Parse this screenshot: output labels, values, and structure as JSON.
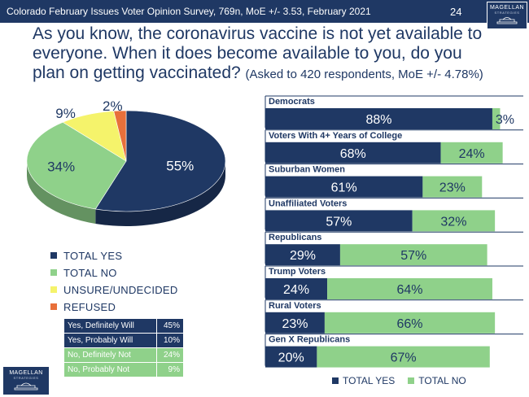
{
  "header": {
    "title": "Colorado February Issues Voter Opinion Survey, 769n, MoE +/- 3.53, February 2021",
    "page_number": "24",
    "logo_text": "MAGELLAN",
    "logo_subtext": "STRATEGIES",
    "bar_color": "#1f3864"
  },
  "question": {
    "main": "As you know, the coronavirus vaccine is not yet available to everyone. When it does become available to you, do you plan on getting vaccinated?",
    "note": "(Asked to 420 respondents, MoE +/- 4.78%)"
  },
  "chart_data": [
    {
      "type": "pie",
      "categories": [
        "TOTAL YES",
        "TOTAL NO",
        "UNSURE/UNDECIDED",
        "REFUSED"
      ],
      "values": [
        55,
        34,
        9,
        2
      ],
      "labels": [
        "55%",
        "34%",
        "9%",
        "2%"
      ],
      "colors": [
        "#1f3864",
        "#8fd18a",
        "#f5f36b",
        "#e8703a"
      ],
      "legend_position": "bottom"
    },
    {
      "type": "bar",
      "orientation": "horizontal",
      "stacked": true,
      "categories": [
        "Democrats",
        "Voters With 4+ Years of College",
        "Suburban Women",
        "Unaffiliated Voters",
        "Republicans",
        "Trump Voters",
        "Rural Voters",
        "Gen X Republicans"
      ],
      "series": [
        {
          "name": "TOTAL YES",
          "values": [
            88,
            68,
            61,
            57,
            29,
            24,
            23,
            20
          ],
          "labels": [
            "88%",
            "68%",
            "61%",
            "57%",
            "29%",
            "24%",
            "23%",
            "20%"
          ],
          "color": "#1f3864"
        },
        {
          "name": "TOTAL NO",
          "values": [
            3,
            24,
            23,
            32,
            57,
            64,
            66,
            67
          ],
          "labels": [
            "3%",
            "24%",
            "23%",
            "32%",
            "57%",
            "64%",
            "66%",
            "67%"
          ],
          "color": "#8fd18a"
        }
      ],
      "xlim": [
        0,
        100
      ],
      "legend_position": "bottom"
    }
  ],
  "detail_table": {
    "rows": [
      {
        "label": "Yes, Definitely Will",
        "value": "45%",
        "group": "yes"
      },
      {
        "label": "Yes, Probably Will",
        "value": "10%",
        "group": "yes"
      },
      {
        "label": "No, Definitely Not",
        "value": "24%",
        "group": "no"
      },
      {
        "label": "No, Probably Not",
        "value": "9%",
        "group": "no"
      }
    ],
    "colors": {
      "yes": "#1f3864",
      "no": "#8fd18a"
    }
  }
}
